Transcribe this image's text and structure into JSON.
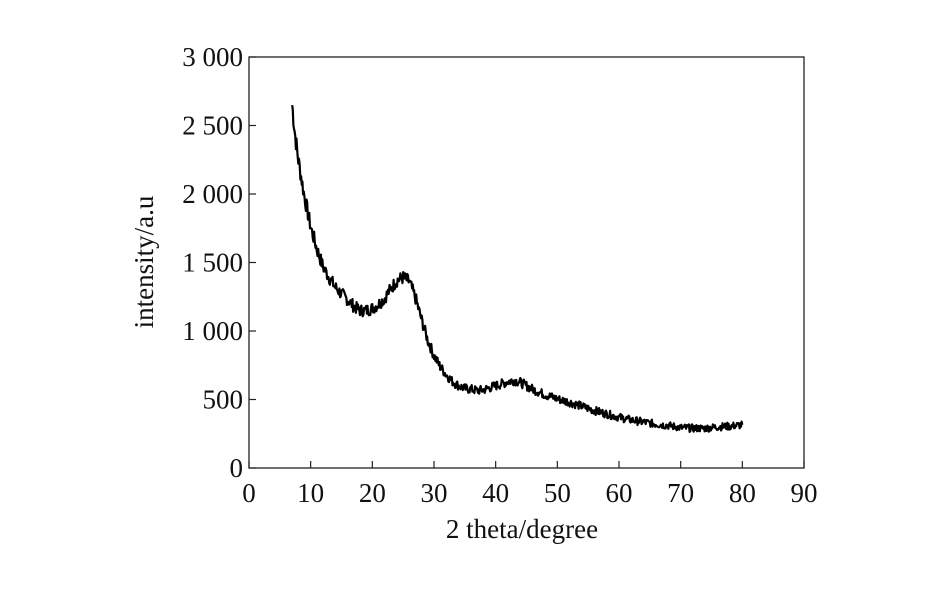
{
  "chart_data": {
    "type": "line",
    "title": "",
    "xlabel": "2 theta/degree",
    "ylabel": "intensity/a.u",
    "xlim": [
      0,
      90
    ],
    "ylim": [
      0,
      3000
    ],
    "x_ticks": [
      0,
      10,
      20,
      30,
      40,
      50,
      60,
      70,
      80,
      90
    ],
    "x_tick_labels": [
      "0",
      "10",
      "20",
      "30",
      "40",
      "50",
      "60",
      "70",
      "80",
      "90"
    ],
    "y_ticks": [
      0,
      500,
      1000,
      1500,
      2000,
      2500,
      3000
    ],
    "y_tick_labels": [
      "0",
      "500",
      "1 000",
      "1 500",
      "2 000",
      "2 500",
      "3 000"
    ],
    "grid": false,
    "legend": "none",
    "line_color": "#000000",
    "series": [
      {
        "x": [
          7,
          7.5,
          8,
          9,
          10,
          11,
          12,
          13,
          14,
          15,
          16,
          17,
          18,
          19,
          20,
          21,
          22,
          23,
          24,
          25,
          26,
          27,
          28,
          29,
          30,
          31,
          32,
          33,
          34,
          35,
          36,
          37,
          38,
          39,
          40,
          41,
          42,
          43,
          44,
          45,
          46,
          47,
          48,
          49,
          50,
          52,
          54,
          56,
          58,
          60,
          62,
          64,
          66,
          68,
          70,
          72,
          74,
          76,
          78,
          80
        ],
        "y": [
          2650,
          2420,
          2250,
          1980,
          1760,
          1600,
          1470,
          1390,
          1320,
          1270,
          1230,
          1180,
          1150,
          1150,
          1165,
          1195,
          1240,
          1310,
          1370,
          1390,
          1360,
          1240,
          1080,
          930,
          820,
          740,
          680,
          630,
          600,
          580,
          575,
          565,
          570,
          585,
          600,
          615,
          630,
          640,
          625,
          600,
          575,
          555,
          535,
          520,
          505,
          480,
          450,
          420,
          395,
          370,
          350,
          335,
          320,
          310,
          295,
          290,
          290,
          300,
          305,
          315
        ]
      }
    ]
  }
}
